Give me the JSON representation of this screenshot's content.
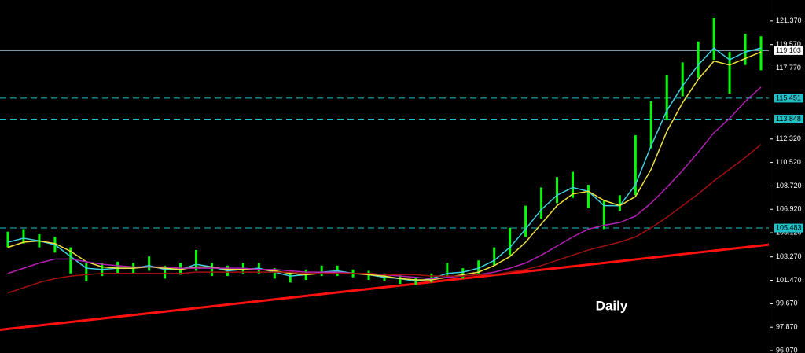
{
  "chart_data": {
    "type": "ohlc",
    "annotation": "Daily",
    "ylim": [
      95.89,
      122.99
    ],
    "yticks": [
      {
        "value": 121.37,
        "label": "121.370"
      },
      {
        "value": 119.57,
        "label": "119.570"
      },
      {
        "value": 117.77,
        "label": "117.770"
      },
      {
        "value": 112.32,
        "label": "112.320"
      },
      {
        "value": 110.52,
        "label": "110.520"
      },
      {
        "value": 108.72,
        "label": "108.720"
      },
      {
        "value": 106.92,
        "label": "106.920"
      },
      {
        "value": 105.12,
        "label": "105.120"
      },
      {
        "value": 103.27,
        "label": "103.270"
      },
      {
        "value": 101.47,
        "label": "101.470"
      },
      {
        "value": 99.67,
        "label": "99.670"
      },
      {
        "value": 97.87,
        "label": "97.870"
      },
      {
        "value": 96.07,
        "label": "96.070"
      }
    ],
    "grid": false,
    "bar_color": "#00ff00",
    "bars": {
      "high": [
        105.2,
        105.4,
        105.0,
        104.8,
        104.0,
        102.8,
        102.8,
        102.9,
        102.8,
        103.3,
        102.6,
        102.8,
        103.8,
        102.8,
        102.6,
        102.8,
        102.8,
        102.4,
        102.1,
        102.3,
        102.6,
        102.6,
        102.3,
        102.2,
        102.0,
        101.9,
        101.7,
        102.0,
        102.8,
        102.4,
        103.0,
        104.0,
        105.5,
        107.2,
        108.6,
        109.4,
        109.8,
        108.8,
        107.6,
        108.0,
        112.6,
        115.2,
        117.2,
        118.2,
        119.8,
        121.6,
        119.0,
        120.4,
        120.2
      ],
      "low": [
        104.0,
        104.3,
        104.0,
        103.6,
        102.0,
        101.4,
        101.8,
        102.0,
        102.0,
        102.2,
        101.6,
        101.9,
        102.2,
        101.8,
        101.8,
        102.0,
        102.0,
        101.6,
        101.3,
        101.5,
        101.8,
        101.8,
        101.7,
        101.5,
        101.4,
        101.2,
        101.1,
        101.3,
        101.7,
        101.6,
        102.0,
        102.6,
        103.4,
        104.8,
        106.2,
        107.4,
        107.8,
        107.0,
        105.4,
        106.8,
        108.0,
        111.6,
        113.8,
        115.6,
        117.0,
        118.4,
        115.8,
        118.0,
        117.6
      ]
    },
    "series": [
      {
        "color": "#3fd0e0",
        "values": [
          104.4,
          104.7,
          104.5,
          104.2,
          103.3,
          102.4,
          102.3,
          102.4,
          102.4,
          102.6,
          102.3,
          102.3,
          102.7,
          102.5,
          102.2,
          102.3,
          102.4,
          102.1,
          101.8,
          101.9,
          102.1,
          102.2,
          102.0,
          101.9,
          101.7,
          101.6,
          101.4,
          101.6,
          102.0,
          102.1,
          102.4,
          103.0,
          104.0,
          105.4,
          106.9,
          108.0,
          108.6,
          108.3,
          107.2,
          107.2,
          108.8,
          111.8,
          114.5,
          116.4,
          118.0,
          119.3,
          118.4,
          119.0,
          119.3
        ]
      },
      {
        "color": "#f0e040",
        "values": [
          104.0,
          104.4,
          104.5,
          104.3,
          103.7,
          102.9,
          102.5,
          102.4,
          102.4,
          102.5,
          102.4,
          102.3,
          102.5,
          102.5,
          102.3,
          102.3,
          102.3,
          102.2,
          102.0,
          101.9,
          102.0,
          102.1,
          102.0,
          101.9,
          101.8,
          101.6,
          101.5,
          101.5,
          101.7,
          101.9,
          102.1,
          102.6,
          103.3,
          104.4,
          105.8,
          107.2,
          108.1,
          108.3,
          107.6,
          107.2,
          107.9,
          110.0,
          112.9,
          115.1,
          116.9,
          118.3,
          118.0,
          118.5,
          119.0
        ]
      },
      {
        "color": "#b020b0",
        "values": [
          102.0,
          102.4,
          102.8,
          103.1,
          103.1,
          102.9,
          102.7,
          102.6,
          102.5,
          102.5,
          102.5,
          102.4,
          102.4,
          102.4,
          102.4,
          102.4,
          102.3,
          102.3,
          102.2,
          102.1,
          102.1,
          102.1,
          102.0,
          102.0,
          101.9,
          101.8,
          101.7,
          101.6,
          101.7,
          101.8,
          101.9,
          102.1,
          102.4,
          102.8,
          103.4,
          104.1,
          104.8,
          105.4,
          105.7,
          105.9,
          106.4,
          107.4,
          108.6,
          109.9,
          111.3,
          112.8,
          113.9,
          115.2,
          116.3
        ]
      },
      {
        "color": "#a01010",
        "values": [
          100.5,
          100.9,
          101.3,
          101.6,
          101.8,
          101.9,
          102.0,
          102.0,
          102.0,
          102.0,
          102.0,
          102.0,
          102.1,
          102.1,
          102.1,
          102.1,
          102.1,
          102.1,
          102.1,
          102.0,
          102.0,
          102.0,
          102.0,
          102.0,
          101.9,
          101.9,
          101.9,
          101.8,
          101.8,
          101.8,
          101.9,
          101.9,
          102.1,
          102.3,
          102.6,
          103.0,
          103.4,
          103.8,
          104.1,
          104.4,
          104.8,
          105.5,
          106.3,
          107.2,
          108.1,
          109.1,
          110.0,
          110.9,
          111.9
        ]
      }
    ],
    "trendline": {
      "start": 97.67,
      "end": 104.21,
      "color": "#ff1010"
    },
    "levels": [
      {
        "value": 119.103,
        "color": "#8fa8b8",
        "dashed": false
      },
      {
        "value": 115.451,
        "color": "#20c0c8",
        "dashed": true
      },
      {
        "value": 113.848,
        "color": "#20c0c8",
        "dashed": true
      },
      {
        "value": 105.483,
        "color": "#20c0c8",
        "dashed": true
      }
    ]
  }
}
